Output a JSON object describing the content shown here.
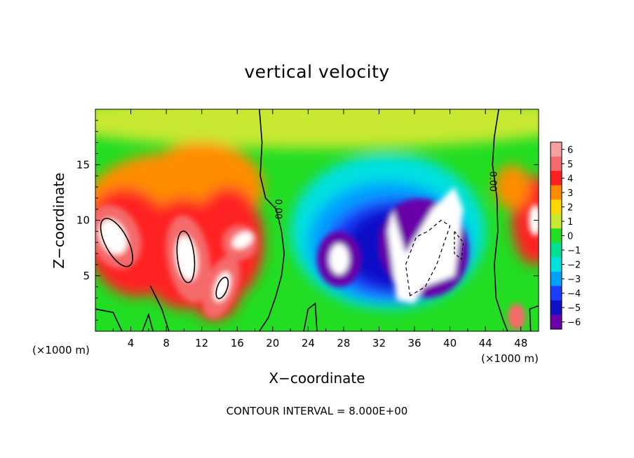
{
  "title": "vertical velocity",
  "footer": "CONTOUR INTERVAL = 8.000E+00",
  "chart_data": {
    "type": "heatmap",
    "title": "vertical velocity",
    "xlabel": "X−coordinate",
    "ylabel": "Z−coordinate",
    "x_unit": "(×1000 m)",
    "xlim": [
      0,
      50
    ],
    "ylim": [
      0,
      20
    ],
    "x_ticks": [
      4,
      8,
      12,
      16,
      20,
      24,
      28,
      32,
      36,
      40,
      44,
      48
    ],
    "y_ticks": [
      5,
      10,
      15
    ],
    "colorbar": {
      "ticks": [
        6,
        5,
        4,
        3,
        2,
        1,
        0,
        -1,
        -2,
        -3,
        -4,
        -5,
        -6
      ],
      "tick_labels": [
        "6",
        "5",
        "4",
        "3",
        "2",
        "1",
        "0",
        "−1",
        "−2",
        "−3",
        "−4",
        "−5",
        "−6"
      ],
      "colors": [
        "#f7a0a0",
        "#f56a6a",
        "#ff2020",
        "#ff8c00",
        "#ffd700",
        "#c8e832",
        "#22dd22",
        "#00e090",
        "#00e0e0",
        "#00a0ff",
        "#1c3cff",
        "#1010c8",
        "#6a00a8"
      ]
    },
    "contour_label": "0.00",
    "contour_interval": 8,
    "features": [
      {
        "sign": "positive",
        "x": 2,
        "z": 8.5,
        "peak": 8
      },
      {
        "sign": "positive",
        "x": 9,
        "z": 6.5,
        "peak": 10
      },
      {
        "sign": "positive",
        "x": 13,
        "z": 4,
        "peak": 9
      },
      {
        "sign": "positive",
        "x": 15,
        "z": 8,
        "peak": 7
      },
      {
        "sign": "negative",
        "x": 27,
        "z": 7,
        "peak": -7
      },
      {
        "sign": "negative",
        "x": 36,
        "z": 8,
        "peak": -12
      },
      {
        "sign": "positive",
        "x": 49,
        "z": 10,
        "peak": 7
      }
    ]
  }
}
